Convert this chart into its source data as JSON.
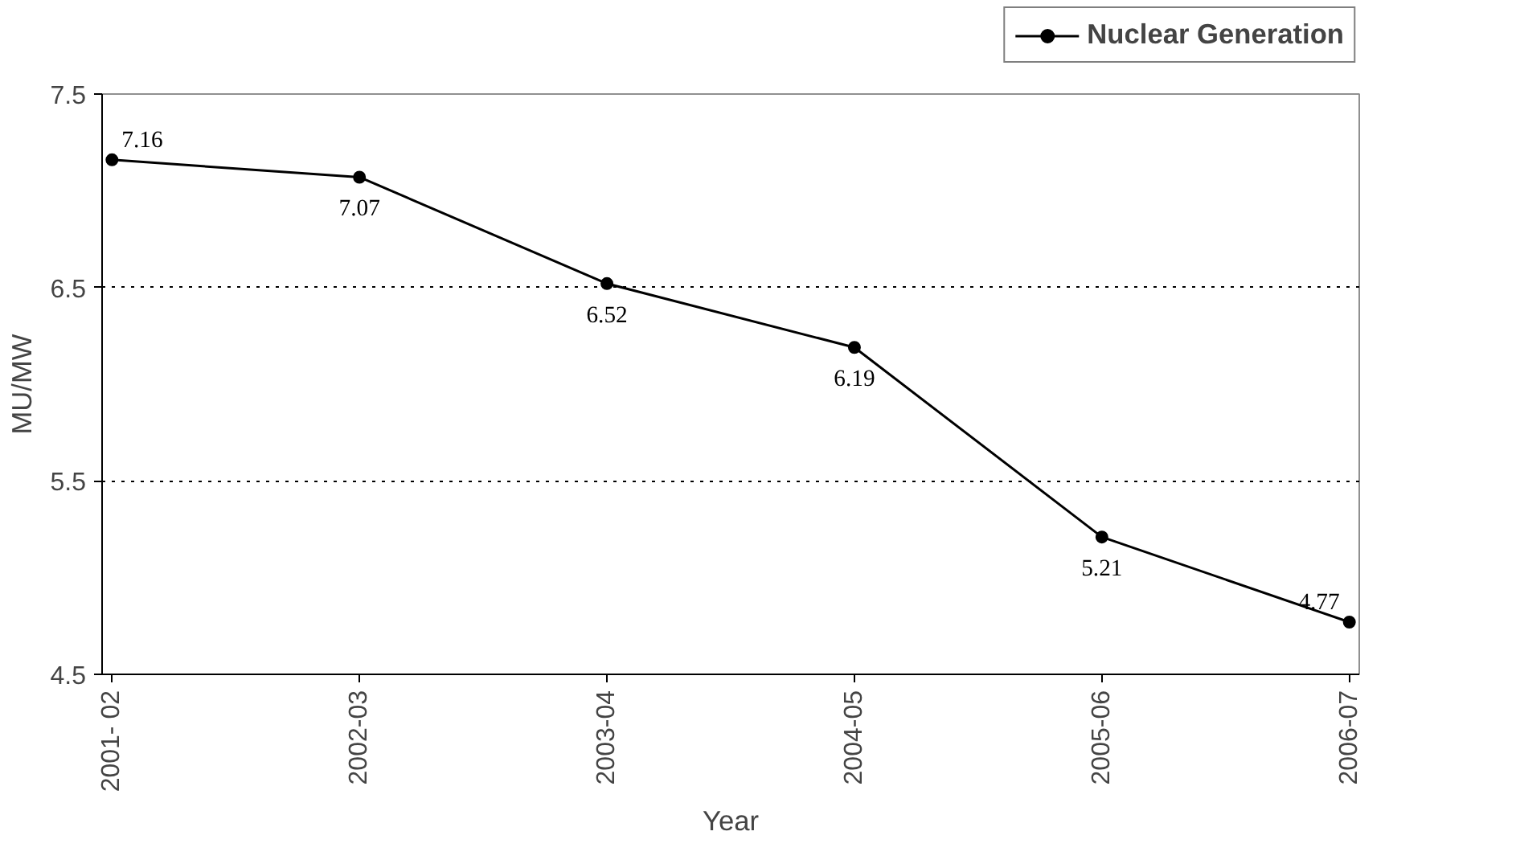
{
  "chart_data": {
    "type": "line",
    "xlabel": "Year",
    "ylabel": "MU/MW",
    "categories": [
      "2001- 02",
      "2002-03",
      "2003-04",
      "2004-05",
      "2005-06",
      "2006-07"
    ],
    "series": [
      {
        "name": "Nuclear Generation",
        "color": "#000000",
        "values": [
          7.16,
          7.07,
          6.52,
          6.19,
          5.21,
          4.77
        ]
      }
    ],
    "ylim": [
      4.5,
      7.5
    ],
    "yticks": [
      4.5,
      5.5,
      6.5,
      7.5
    ],
    "grid": "y",
    "legend": "top right",
    "marker": "circle",
    "line_style": "solid",
    "data_labels": true
  }
}
